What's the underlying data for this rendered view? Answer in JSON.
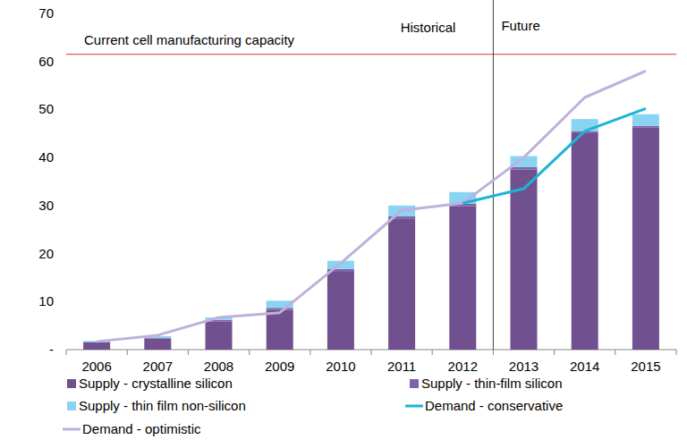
{
  "chart_data": {
    "type": "bar",
    "stacked": true,
    "grid": false,
    "legend": "bottom",
    "categories": [
      "2006",
      "2007",
      "2008",
      "2009",
      "2010",
      "2011",
      "2012",
      "2013",
      "2014",
      "2015"
    ],
    "ylim": [
      0,
      70
    ],
    "yticks": [
      {
        "value": 0,
        "label": "-"
      },
      10,
      20,
      30,
      40,
      50,
      60,
      70
    ],
    "annotations": [
      {
        "text": "Current cell manufacturing capacity",
        "y": 61.5,
        "color": "#e0604f"
      },
      {
        "text": "Historical",
        "x": "2012"
      },
      {
        "text": "Future",
        "x": "2013"
      }
    ],
    "series": [
      {
        "name": "Supply - crystalline silicon",
        "type": "bar",
        "color": "#70508e",
        "values": [
          1.5,
          2.3,
          5.9,
          8.3,
          16.2,
          27.2,
          29.9,
          37.5,
          45.2,
          46.3
        ]
      },
      {
        "name": "Supply - thin-film silicon",
        "type": "bar",
        "color": "#7f63a8",
        "values": [
          0.1,
          0.2,
          0.3,
          0.4,
          0.6,
          0.6,
          0.5,
          0.5,
          0.3,
          0.3
        ]
      },
      {
        "name": "Supply - thin film non-silicon",
        "type": "bar",
        "color": "#88d4f2",
        "values": [
          0.2,
          0.3,
          0.5,
          1.5,
          1.7,
          2.2,
          2.4,
          2.3,
          2.5,
          2.4
        ]
      },
      {
        "name": "Demand - conservative",
        "type": "line",
        "color": "#1cb4d6",
        "values": [
          null,
          null,
          null,
          null,
          null,
          null,
          30.5,
          33.5,
          45.5,
          50.2
        ]
      },
      {
        "name": "Demand - optimistic",
        "type": "line",
        "color": "#bfb0dc",
        "values": [
          1.7,
          3.0,
          6.7,
          7.7,
          18.0,
          29.0,
          30.5,
          40.0,
          52.5,
          58.0
        ]
      }
    ]
  }
}
